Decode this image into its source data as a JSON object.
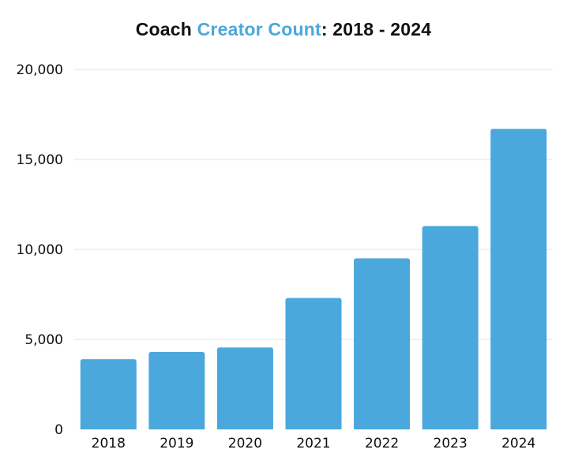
{
  "title": {
    "part1": "Coach ",
    "part2": "Creator Count",
    "part3": ": 2018 - 2024"
  },
  "colors": {
    "bar": "#4aa8dc",
    "accent": "#4aa8dc",
    "grid": "#e3e3e3",
    "text": "#111111"
  },
  "chart_data": {
    "type": "bar",
    "title": "Coach Creator Count: 2018 - 2024",
    "categories": [
      "2018",
      "2019",
      "2020",
      "2021",
      "2022",
      "2023",
      "2024"
    ],
    "values": [
      3900,
      4300,
      4550,
      7300,
      9500,
      11300,
      16700
    ],
    "ylim": [
      0,
      20000
    ],
    "yticks": [
      0,
      5000,
      10000,
      15000,
      20000
    ],
    "ytick_labels": [
      "0",
      "5,000",
      "10,000",
      "15,000",
      "20,000"
    ],
    "xlabel": "",
    "ylabel": "",
    "grid": true,
    "legend": "none"
  }
}
